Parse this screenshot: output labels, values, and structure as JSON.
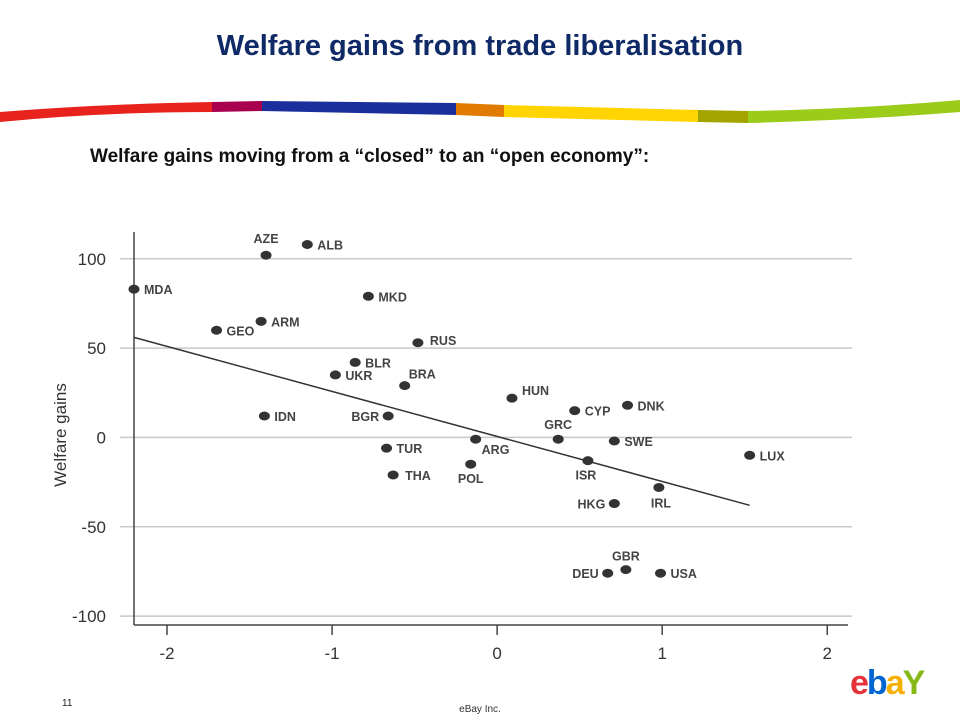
{
  "slide": {
    "title": "Welfare gains from trade liberalisation",
    "subtitle": "Welfare gains moving from a “closed” to an “open economy”:",
    "page_number": "11",
    "company": "eBay Inc.",
    "logo_letters": [
      "e",
      "b",
      "a",
      "Y"
    ],
    "logo_colors": [
      "#e53238",
      "#0064d2",
      "#f5af02",
      "#86b817"
    ],
    "stripe_colors": [
      "#e8221c",
      "#a8004e",
      "#1a2e9c",
      "#e07b00",
      "#ffd400",
      "#a4a400",
      "#9ccc1a"
    ]
  },
  "chart_data": {
    "type": "scatter",
    "title": "",
    "xlabel": "",
    "ylabel": "Welfare gains",
    "xlim": [
      -2.2,
      2.15
    ],
    "ylim": [
      -105,
      115
    ],
    "xticks": [
      "-2",
      "-1",
      "0",
      "1",
      "2"
    ],
    "yticks": [
      "100",
      "50",
      "0",
      "-50",
      "-100"
    ],
    "grid": "horizontal",
    "points": [
      {
        "label": "AZE",
        "x": -1.4,
        "y": 102
      },
      {
        "label": "ALB",
        "x": -1.15,
        "y": 108
      },
      {
        "label": "MDA",
        "x": -2.2,
        "y": 83
      },
      {
        "label": "MKD",
        "x": -0.78,
        "y": 79
      },
      {
        "label": "ARM",
        "x": -1.43,
        "y": 65
      },
      {
        "label": "GEO",
        "x": -1.7,
        "y": 60
      },
      {
        "label": "RUS",
        "x": -0.48,
        "y": 53
      },
      {
        "label": "BLR",
        "x": -0.86,
        "y": 42
      },
      {
        "label": "UKR",
        "x": -0.98,
        "y": 35
      },
      {
        "label": "BRA",
        "x": -0.56,
        "y": 29
      },
      {
        "label": "HUN",
        "x": 0.09,
        "y": 22
      },
      {
        "label": "DNK",
        "x": 0.79,
        "y": 18
      },
      {
        "label": "CYP",
        "x": 0.47,
        "y": 15
      },
      {
        "label": "IDN",
        "x": -1.41,
        "y": 12
      },
      {
        "label": "BGR",
        "x": -0.66,
        "y": 12
      },
      {
        "label": "ARG",
        "x": -0.13,
        "y": -1
      },
      {
        "label": "GRC",
        "x": 0.37,
        "y": -1
      },
      {
        "label": "SWE",
        "x": 0.71,
        "y": -2
      },
      {
        "label": "TUR",
        "x": -0.67,
        "y": -6
      },
      {
        "label": "LUX",
        "x": 1.53,
        "y": -10
      },
      {
        "label": "ISR",
        "x": 0.55,
        "y": -13
      },
      {
        "label": "POL",
        "x": -0.16,
        "y": -15
      },
      {
        "label": "THA",
        "x": -0.63,
        "y": -21
      },
      {
        "label": "IRL",
        "x": 0.98,
        "y": -28
      },
      {
        "label": "HKG",
        "x": 0.71,
        "y": -37
      },
      {
        "label": "GBR",
        "x": 0.78,
        "y": -74
      },
      {
        "label": "DEU",
        "x": 0.67,
        "y": -76
      },
      {
        "label": "USA",
        "x": 0.99,
        "y": -76
      }
    ],
    "trendline": {
      "x": [
        -2.2,
        1.53
      ],
      "y": [
        56,
        -38
      ]
    }
  }
}
